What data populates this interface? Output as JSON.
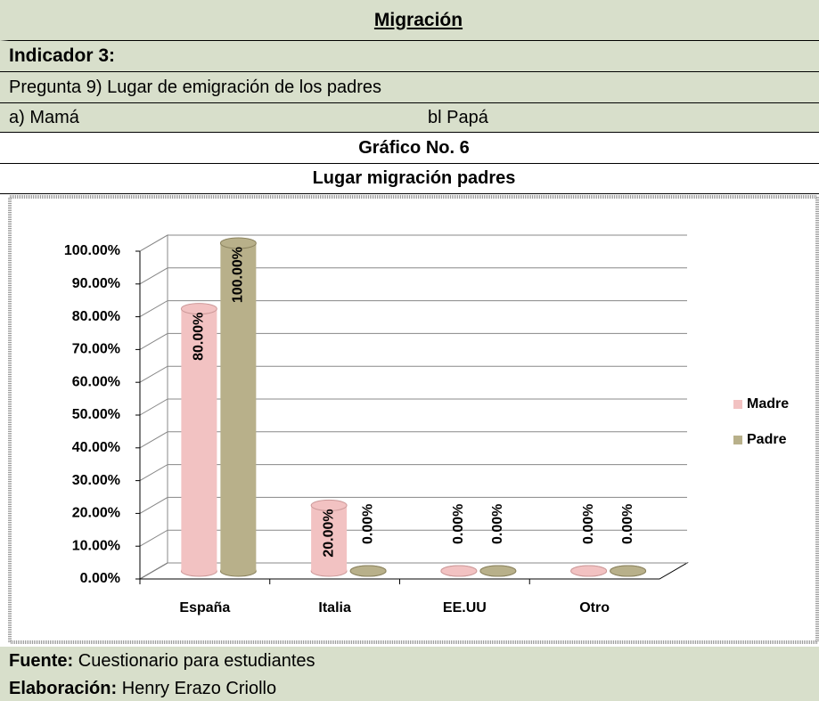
{
  "header": {
    "title": "Migración",
    "indicator": "Indicador 3:",
    "question": "Pregunta 9) Lugar de emigración de los padres",
    "option_a": "a) Mamá",
    "option_b": "bl Papá",
    "chart_number": "Gráfico No. 6"
  },
  "chart_data": {
    "type": "bar3d",
    "title": "Lugar migración padres",
    "categories": [
      "España",
      "Italia",
      "EE.UU",
      "Otro"
    ],
    "series": [
      {
        "name": "Madre",
        "color": "#f2c2c2",
        "values": [
          80,
          20,
          0,
          0
        ],
        "value_labels": [
          "80.00%",
          "20.00%",
          "0.00%",
          "0.00%"
        ]
      },
      {
        "name": "Padre",
        "color": "#b8b08a",
        "values": [
          100,
          0,
          0,
          0
        ],
        "value_labels": [
          "100.00%",
          "0.00%",
          "0.00%",
          "0.00%"
        ]
      }
    ],
    "ylim": [
      0,
      100
    ],
    "yticks": [
      {
        "value": 0,
        "label": "0.00%"
      },
      {
        "value": 10,
        "label": "10.00%"
      },
      {
        "value": 20,
        "label": "20.00%"
      },
      {
        "value": 30,
        "label": "30.00%"
      },
      {
        "value": 40,
        "label": "40.00%"
      },
      {
        "value": 50,
        "label": "50.00%"
      },
      {
        "value": 60,
        "label": "60.00%"
      },
      {
        "value": 70,
        "label": "70.00%"
      },
      {
        "value": 80,
        "label": "80.00%"
      },
      {
        "value": 90,
        "label": "90.00%"
      },
      {
        "value": 100,
        "label": "100.00%"
      }
    ],
    "grid": true,
    "legend": "right"
  },
  "footer": {
    "source_label": "Fuente:",
    "source": "Cuestionario para estudiantes",
    "author_label": "Elaboración:",
    "author": "Henry Erazo Criollo"
  }
}
